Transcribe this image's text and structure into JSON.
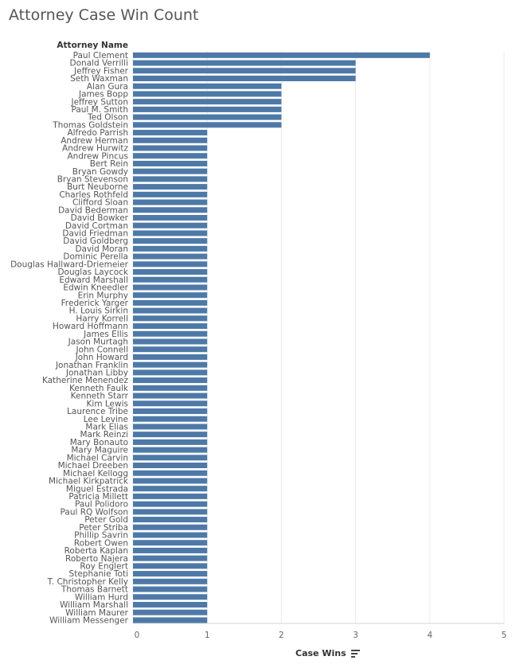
{
  "chart_data": {
    "type": "bar",
    "orientation": "horizontal",
    "title": "Attorney Case Win Count",
    "row_header": "Attorney Name",
    "xlabel": "Case Wins",
    "xlim": [
      0,
      5
    ],
    "xticks": [
      0,
      1,
      2,
      3,
      4,
      5
    ],
    "bar_color": "#4e79a7",
    "categories": [
      "Paul Clement",
      "Donald Verrilli",
      "Jeffrey Fisher",
      "Seth Waxman",
      "Alan Gura",
      "James Bopp",
      "Jeffrey Sutton",
      "Paul M. Smith",
      "Ted Olson",
      "Thomas Goldstein",
      "Alfredo Parrish",
      "Andrew Herman",
      "Andrew Hurwitz",
      "Andrew Pincus",
      "Bert Rein",
      "Bryan Gowdy",
      "Bryan Stevenson",
      "Burt Neuborne",
      "Charles Rothfeld",
      "Clifford Sloan",
      "David Bederman",
      "David Bowker",
      "David Cortman",
      "David Friedman",
      "David Goldberg",
      "David Moran",
      "Dominic Perella",
      "Douglas Hallward-Driemeier",
      "Douglas Laycock",
      "Edward Marshall",
      "Edwin Kneedler",
      "Erin Murphy",
      "Frederick Yarger",
      "H. Louis Sirkin",
      "Harry Korrell",
      "Howard Hoffmann",
      "James Ellis",
      "Jason Murtagh",
      "John Connell",
      "John Howard",
      "Jonathan Franklin",
      "Jonathan Libby",
      "Katherine Menendez",
      "Kenneth Faulk",
      "Kenneth Starr",
      "Kim Lewis",
      "Laurence Tribe",
      "Lee Levine",
      "Mark Elias",
      "Mark Reinzi",
      "Mary Bonauto",
      "Mary Maguire",
      "Michael Carvin",
      "Michael Dreeben",
      "Michael Kellogg",
      "Michael Kirkpatrick",
      "Miguel Estrada",
      "Patricia Millett",
      "Paul Polidoro",
      "Paul RQ Wolfson",
      "Peter Gold",
      "Peter Striba",
      "Phillip Savrin",
      "Robert Owen",
      "Roberta Kaplan",
      "Roberto Najera",
      "Roy Englert",
      "Stephanie Toti",
      "T. Christopher Kelly",
      "Thomas Barnett",
      "William Hurd",
      "William Marshall",
      "William Maurer",
      "William Messenger"
    ],
    "values": [
      4,
      3,
      3,
      3,
      2,
      2,
      2,
      2,
      2,
      2,
      1,
      1,
      1,
      1,
      1,
      1,
      1,
      1,
      1,
      1,
      1,
      1,
      1,
      1,
      1,
      1,
      1,
      1,
      1,
      1,
      1,
      1,
      1,
      1,
      1,
      1,
      1,
      1,
      1,
      1,
      1,
      1,
      1,
      1,
      1,
      1,
      1,
      1,
      1,
      1,
      1,
      1,
      1,
      1,
      1,
      1,
      1,
      1,
      1,
      1,
      1,
      1,
      1,
      1,
      1,
      1,
      1,
      1,
      1,
      1,
      1,
      1,
      1,
      1
    ]
  }
}
